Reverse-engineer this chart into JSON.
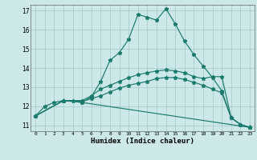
{
  "xlabel": "Humidex (Indice chaleur)",
  "bg_color": "#cce8e8",
  "grid_color": "#aacccc",
  "line_color": "#1a7a6e",
  "xlim": [
    -0.5,
    23.5
  ],
  "ylim": [
    10.7,
    17.3
  ],
  "yticks": [
    11,
    12,
    13,
    14,
    15,
    16,
    17
  ],
  "xticks": [
    0,
    1,
    2,
    3,
    4,
    5,
    6,
    7,
    8,
    9,
    10,
    11,
    12,
    13,
    14,
    15,
    16,
    17,
    18,
    19,
    20,
    21,
    22,
    23
  ],
  "series": [
    {
      "x": [
        0,
        1,
        2,
        3,
        4,
        5,
        6,
        7,
        8,
        9,
        10,
        11,
        12,
        13,
        14,
        15,
        16,
        17,
        18,
        19,
        20,
        21,
        22,
        23
      ],
      "y": [
        11.5,
        12.0,
        12.2,
        12.3,
        12.3,
        12.2,
        12.5,
        13.3,
        14.4,
        14.8,
        15.5,
        16.8,
        16.65,
        16.5,
        17.1,
        16.3,
        15.4,
        14.7,
        14.1,
        13.5,
        12.8,
        11.4,
        11.05,
        10.9
      ]
    },
    {
      "x": [
        0,
        3,
        5,
        6,
        7,
        8,
        9,
        10,
        11,
        12,
        13,
        14,
        15,
        16,
        17,
        18,
        19,
        20,
        21,
        22,
        23
      ],
      "y": [
        11.5,
        12.3,
        12.3,
        12.55,
        12.9,
        13.1,
        13.3,
        13.5,
        13.65,
        13.75,
        13.85,
        13.9,
        13.85,
        13.75,
        13.55,
        13.45,
        13.55,
        13.55,
        11.4,
        11.05,
        10.9
      ]
    },
    {
      "x": [
        0,
        3,
        5,
        6,
        7,
        8,
        9,
        10,
        11,
        12,
        13,
        14,
        15,
        16,
        17,
        18,
        19,
        20,
        21,
        22,
        23
      ],
      "y": [
        11.5,
        12.3,
        12.25,
        12.4,
        12.55,
        12.75,
        12.95,
        13.1,
        13.2,
        13.3,
        13.45,
        13.5,
        13.5,
        13.4,
        13.25,
        13.1,
        12.9,
        12.7,
        11.4,
        11.05,
        10.9
      ]
    },
    {
      "x": [
        0,
        3,
        5,
        23
      ],
      "y": [
        11.5,
        12.3,
        12.2,
        10.9
      ]
    }
  ]
}
